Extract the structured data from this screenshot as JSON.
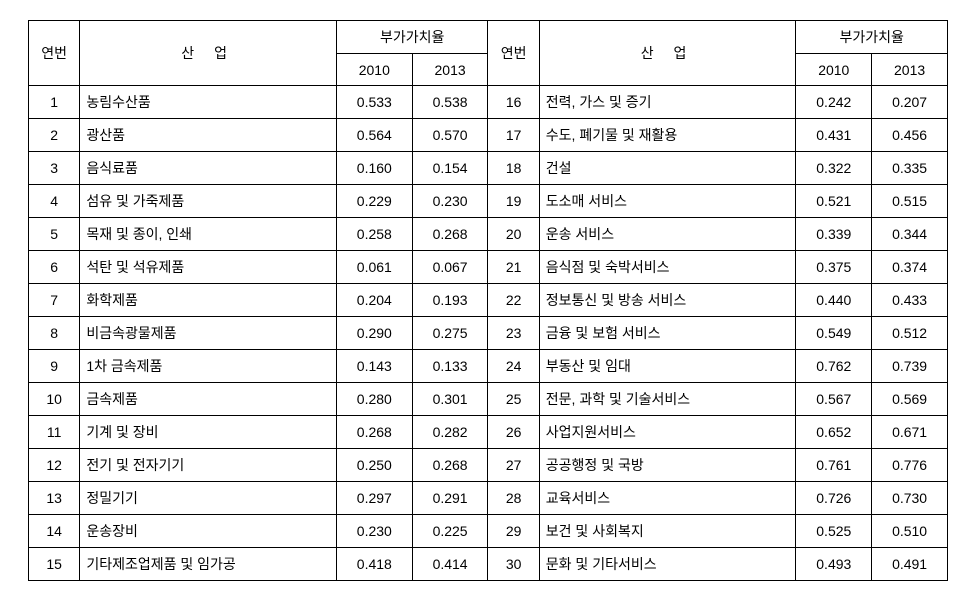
{
  "headers": {
    "seq": "연번",
    "industry": "산  업",
    "value_group": "부가가치율",
    "y2010": "2010",
    "y2013": "2013"
  },
  "colors": {
    "border": "#000000",
    "background": "#ffffff",
    "text": "#000000"
  },
  "typography": {
    "font_family": "Malgun Gothic, 맑은 고딕, sans-serif",
    "font_size_pt": 11
  },
  "rows": [
    {
      "n": "1",
      "ind": "농림수산품",
      "v10": "0.533",
      "v13": "0.538",
      "n2": "16",
      "ind2": "전력, 가스 및 증기",
      "v10b": "0.242",
      "v13b": "0.207"
    },
    {
      "n": "2",
      "ind": "광산품",
      "v10": "0.564",
      "v13": "0.570",
      "n2": "17",
      "ind2": "수도, 폐기물 및 재활용",
      "v10b": "0.431",
      "v13b": "0.456"
    },
    {
      "n": "3",
      "ind": "음식료품",
      "v10": "0.160",
      "v13": "0.154",
      "n2": "18",
      "ind2": "건설",
      "v10b": "0.322",
      "v13b": "0.335"
    },
    {
      "n": "4",
      "ind": "섬유 및 가죽제품",
      "v10": "0.229",
      "v13": "0.230",
      "n2": "19",
      "ind2": "도소매 서비스",
      "v10b": "0.521",
      "v13b": "0.515"
    },
    {
      "n": "5",
      "ind": "목재 및 종이, 인쇄",
      "v10": "0.258",
      "v13": "0.268",
      "n2": "20",
      "ind2": "운송 서비스",
      "v10b": "0.339",
      "v13b": "0.344"
    },
    {
      "n": "6",
      "ind": "석탄 및 석유제품",
      "v10": "0.061",
      "v13": "0.067",
      "n2": "21",
      "ind2": "음식점 및 숙박서비스",
      "v10b": "0.375",
      "v13b": "0.374"
    },
    {
      "n": "7",
      "ind": "화학제품",
      "v10": "0.204",
      "v13": "0.193",
      "n2": "22",
      "ind2": "정보통신 및 방송 서비스",
      "v10b": "0.440",
      "v13b": "0.433"
    },
    {
      "n": "8",
      "ind": "비금속광물제품",
      "v10": "0.290",
      "v13": "0.275",
      "n2": "23",
      "ind2": "금융 및 보험 서비스",
      "v10b": "0.549",
      "v13b": "0.512"
    },
    {
      "n": "9",
      "ind": "1차 금속제품",
      "v10": "0.143",
      "v13": "0.133",
      "n2": "24",
      "ind2": "부동산 및 임대",
      "v10b": "0.762",
      "v13b": "0.739"
    },
    {
      "n": "10",
      "ind": "금속제품",
      "v10": "0.280",
      "v13": "0.301",
      "n2": "25",
      "ind2": "전문, 과학 및 기술서비스",
      "v10b": "0.567",
      "v13b": "0.569"
    },
    {
      "n": "11",
      "ind": "기계 및 장비",
      "v10": "0.268",
      "v13": "0.282",
      "n2": "26",
      "ind2": "사업지원서비스",
      "v10b": "0.652",
      "v13b": "0.671"
    },
    {
      "n": "12",
      "ind": "전기 및 전자기기",
      "v10": "0.250",
      "v13": "0.268",
      "n2": "27",
      "ind2": "공공행정 및 국방",
      "v10b": "0.761",
      "v13b": "0.776"
    },
    {
      "n": "13",
      "ind": "정밀기기",
      "v10": "0.297",
      "v13": "0.291",
      "n2": "28",
      "ind2": "교육서비스",
      "v10b": "0.726",
      "v13b": "0.730"
    },
    {
      "n": "14",
      "ind": "운송장비",
      "v10": "0.230",
      "v13": "0.225",
      "n2": "29",
      "ind2": "보건 및 사회복지",
      "v10b": "0.525",
      "v13b": "0.510"
    },
    {
      "n": "15",
      "ind": "기타제조업제품 및 임가공",
      "v10": "0.418",
      "v13": "0.414",
      "n2": "30",
      "ind2": "문화 및 기타서비스",
      "v10b": "0.493",
      "v13b": "0.491"
    }
  ]
}
